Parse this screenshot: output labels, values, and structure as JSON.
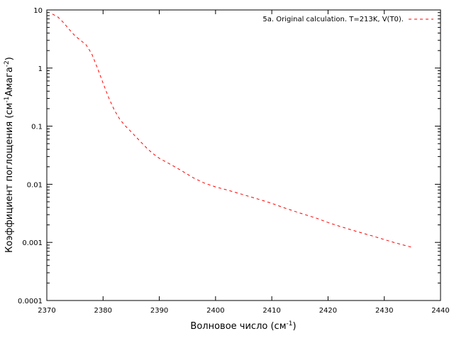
{
  "chart_data": {
    "type": "line",
    "xlabel": "Волновое число (см",
    "xlabel_sup": "-1",
    "xlabel_tail": ")",
    "ylabel_parts": [
      "Коэффициент поглощения (см",
      "-1",
      "Амага",
      "-2",
      ")"
    ],
    "xlim": [
      2370,
      2440
    ],
    "ylim": [
      0.0001,
      10
    ],
    "yscale": "log",
    "x_ticks": [
      "2370",
      "2380",
      "2390",
      "2400",
      "2410",
      "2420",
      "2430",
      "2440"
    ],
    "y_ticks": [
      "10",
      "1",
      "0.1",
      "0.01",
      "0.001",
      "0.0001"
    ],
    "legend_position": "top-right",
    "series": [
      {
        "name": "5a. Original calculation. T=213K, V(T0).",
        "color": "#ff0000",
        "style": "dashed",
        "x": [
          2371,
          2372,
          2373,
          2374,
          2375,
          2376,
          2377,
          2378,
          2379,
          2380,
          2381,
          2382,
          2383,
          2384,
          2385,
          2386,
          2387,
          2388,
          2389,
          2390,
          2392,
          2394,
          2396,
          2398,
          2400,
          2402,
          2405,
          2408,
          2410,
          2412,
          2415,
          2418,
          2420,
          2422,
          2425,
          2428,
          2430,
          2432,
          2435
        ],
        "y": [
          8.5,
          7.5,
          6.0,
          4.6,
          3.6,
          3.0,
          2.5,
          1.75,
          1.0,
          0.55,
          0.31,
          0.19,
          0.13,
          0.1,
          0.08,
          0.063,
          0.05,
          0.04,
          0.033,
          0.028,
          0.022,
          0.017,
          0.013,
          0.0105,
          0.009,
          0.008,
          0.0066,
          0.0054,
          0.0047,
          0.004,
          0.0032,
          0.0026,
          0.0022,
          0.0019,
          0.00155,
          0.00128,
          0.00112,
          0.00098,
          0.00082
        ]
      }
    ]
  }
}
